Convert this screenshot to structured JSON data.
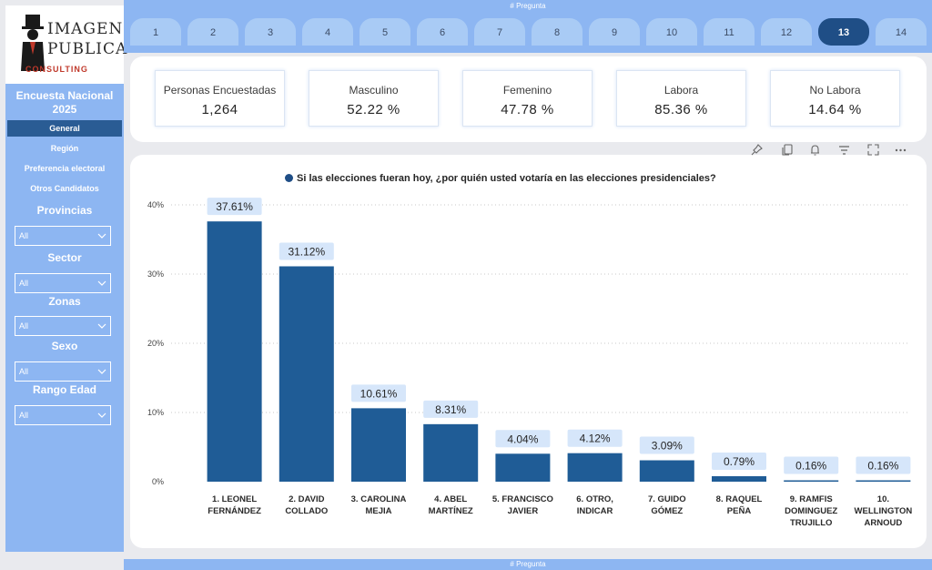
{
  "logo": {
    "line1": "IMAGEN",
    "line2": "PUBLICA",
    "line3": "CONSULTING"
  },
  "sidebar": {
    "title": "Encuesta Nacional 2025",
    "nav": [
      "General",
      "Región",
      "Preferencia electoral",
      "Otros Candidatos"
    ],
    "filters": [
      {
        "label": "Provincias",
        "value": "All"
      },
      {
        "label": "Sector",
        "value": "All"
      },
      {
        "label": "Zonas",
        "value": "All"
      },
      {
        "label": "Sexo",
        "value": "All"
      },
      {
        "label": "Rango Edad",
        "value": "All"
      }
    ]
  },
  "pager": {
    "title": "# Pregunta",
    "pages": [
      "1",
      "2",
      "3",
      "4",
      "5",
      "6",
      "7",
      "8",
      "9",
      "10",
      "11",
      "12",
      "13",
      "14"
    ],
    "active": "13"
  },
  "kpis": [
    {
      "label": "Personas Encuestadas",
      "value": "1,264"
    },
    {
      "label": "Masculino",
      "value": "52.22 %"
    },
    {
      "label": "Femenino",
      "value": "47.78 %"
    },
    {
      "label": "Labora",
      "value": "85.36 %"
    },
    {
      "label": "No Labora",
      "value": "14.64 %"
    }
  ],
  "toolbar": [
    "pin-icon",
    "copy-icon",
    "bell-icon",
    "filter-icon",
    "focus-icon",
    "more-icon"
  ],
  "chart_data": {
    "type": "bar",
    "title": "Si las elecciones fueran hoy, ¿por quién usted votaría en las elecciones presidenciales?",
    "categories": [
      "1. LEONEL FERNÁNDEZ",
      "2. DAVID COLLADO",
      "3. CAROLINA MEJIA",
      "4. ABEL MARTÍNEZ",
      "5. FRANCISCO JAVIER",
      "6. OTRO, INDICAR",
      "7. GUIDO GÓMEZ",
      "8. RAQUEL PEÑA",
      "9. RAMFIS DOMINGUEZ TRUJILLO",
      "10. WELLINGTON ARNOUD"
    ],
    "category_lines": [
      [
        "1. LEONEL",
        "FERNÁNDEZ"
      ],
      [
        "2. DAVID",
        "COLLADO"
      ],
      [
        "3. CAROLINA",
        "MEJIA"
      ],
      [
        "4. ABEL",
        "MARTÍNEZ"
      ],
      [
        "5. FRANCISCO",
        "JAVIER"
      ],
      [
        "6. OTRO,",
        "INDICAR"
      ],
      [
        "7. GUIDO",
        "GÓMEZ"
      ],
      [
        "8. RAQUEL",
        "PEÑA"
      ],
      [
        "9. RAMFIS",
        "DOMINGUEZ",
        "TRUJILLO"
      ],
      [
        "10.",
        "WELLINGTON",
        "ARNOUD"
      ]
    ],
    "values": [
      37.61,
      31.12,
      10.61,
      8.31,
      4.04,
      4.12,
      3.09,
      0.79,
      0.16,
      0.16
    ],
    "data_labels": [
      "37.61%",
      "31.12%",
      "10.61%",
      "8.31%",
      "4.04%",
      "4.12%",
      "3.09%",
      "0.79%",
      "0.16%",
      "0.16%"
    ],
    "yticks": [
      0,
      10,
      20,
      30,
      40
    ],
    "ytick_labels": [
      "0%",
      "10%",
      "20%",
      "30%",
      "40%"
    ],
    "ylim": [
      0,
      40
    ],
    "grid": true,
    "legend": "none",
    "bar_color": "#1f5c96",
    "label_bg": "#d6e6fa"
  },
  "bottom": {
    "title": "# Pregunta"
  }
}
